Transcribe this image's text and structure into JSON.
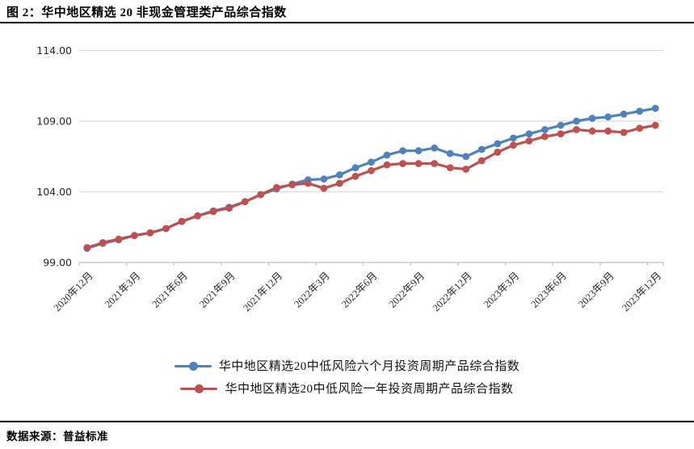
{
  "header": {
    "title": "图 2：华中地区精选 20 非现金管理类产品综合指数"
  },
  "footer": {
    "source": "数据来源：普益标准"
  },
  "chart_data": {
    "type": "line",
    "title": "华中地区精选20非现金管理类产品综合指数",
    "x": [
      "2020年12月",
      "2021年1月",
      "2021年2月",
      "2021年3月",
      "2021年4月",
      "2021年5月",
      "2021年6月",
      "2021年7月",
      "2021年8月",
      "2021年9月",
      "2021年10月",
      "2021年11月",
      "2021年12月",
      "2022年1月",
      "2022年2月",
      "2022年3月",
      "2022年4月",
      "2022年5月",
      "2022年6月",
      "2022年7月",
      "2022年8月",
      "2022年9月",
      "2022年10月",
      "2022年11月",
      "2022年12月",
      "2023年1月",
      "2023年2月",
      "2023年3月",
      "2023年4月",
      "2023年5月",
      "2023年6月",
      "2023年7月",
      "2023年8月",
      "2023年9月",
      "2023年10月",
      "2023年11月",
      "2023年12月"
    ],
    "x_tick_interval": 3,
    "x_tick_labels": [
      "2020年12月",
      "2021年3月",
      "2021年6月",
      "2021年9月",
      "2021年12月",
      "2022年3月",
      "2022年6月",
      "2022年9月",
      "2022年12月",
      "2023年3月",
      "2023年6月",
      "2023年9月",
      "2023年12月"
    ],
    "series": [
      {
        "name": "华中地区精选20中低风险六个月投资周期产品综合指数",
        "color": "#4F81BD",
        "marker": "circle",
        "values": [
          100.0,
          100.35,
          100.6,
          100.9,
          101.1,
          101.4,
          101.9,
          102.3,
          102.65,
          102.9,
          103.3,
          103.8,
          104.2,
          104.55,
          104.85,
          104.9,
          105.2,
          105.7,
          106.1,
          106.6,
          106.9,
          106.9,
          107.1,
          106.7,
          106.5,
          107.0,
          107.4,
          107.8,
          108.1,
          108.4,
          108.7,
          109.0,
          109.2,
          109.3,
          109.5,
          109.7,
          109.9
        ]
      },
      {
        "name": "华中地区精选20中低风险一年投资周期产品综合指数",
        "color": "#C0504D",
        "marker": "circle",
        "values": [
          100.05,
          100.4,
          100.65,
          100.9,
          101.1,
          101.4,
          101.9,
          102.3,
          102.6,
          102.85,
          103.3,
          103.8,
          104.3,
          104.5,
          104.6,
          104.25,
          104.6,
          105.1,
          105.5,
          105.9,
          106.0,
          106.0,
          106.0,
          105.7,
          105.6,
          106.2,
          106.8,
          107.3,
          107.6,
          107.9,
          108.1,
          108.4,
          108.3,
          108.3,
          108.2,
          108.5,
          108.7
        ]
      }
    ],
    "ylim": [
      99,
      114
    ],
    "yticks": [
      99,
      104,
      109,
      114
    ],
    "ytick_labels": [
      "99.00",
      "104.00",
      "109.00",
      "114.00"
    ],
    "grid": true,
    "legend_position": "bottom-center",
    "colors": {
      "grid": "#D9D9D9",
      "axis": "#BFBFBF",
      "tick_text": "#262626"
    }
  }
}
